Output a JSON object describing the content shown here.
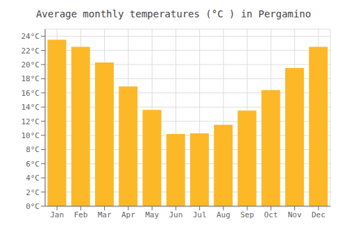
{
  "chart_data": {
    "type": "bar",
    "title": "Average monthly temperatures (°C ) in Pergamino",
    "categories": [
      "Jan",
      "Feb",
      "Mar",
      "Apr",
      "May",
      "Jun",
      "Jul",
      "Aug",
      "Sep",
      "Oct",
      "Nov",
      "Dec"
    ],
    "values": [
      23.5,
      22.5,
      20.3,
      16.9,
      13.6,
      10.2,
      10.3,
      11.5,
      13.5,
      16.4,
      19.5,
      22.5
    ],
    "color": "#FDB827",
    "ylim": [
      0,
      25
    ],
    "yticks": [
      {
        "value": 0,
        "label": "0°C"
      },
      {
        "value": 2,
        "label": "2°C"
      },
      {
        "value": 4,
        "label": "4°C"
      },
      {
        "value": 6,
        "label": "6°C"
      },
      {
        "value": 8,
        "label": "8°C"
      },
      {
        "value": 10,
        "label": "10°C"
      },
      {
        "value": 12,
        "label": "12°C"
      },
      {
        "value": 14,
        "label": "14°C"
      },
      {
        "value": 16,
        "label": "16°C"
      },
      {
        "value": 18,
        "label": "18°C"
      },
      {
        "value": 20,
        "label": "20°C"
      },
      {
        "value": 22,
        "label": "22°C"
      },
      {
        "value": 24,
        "label": "24°C"
      }
    ],
    "grid": true
  }
}
